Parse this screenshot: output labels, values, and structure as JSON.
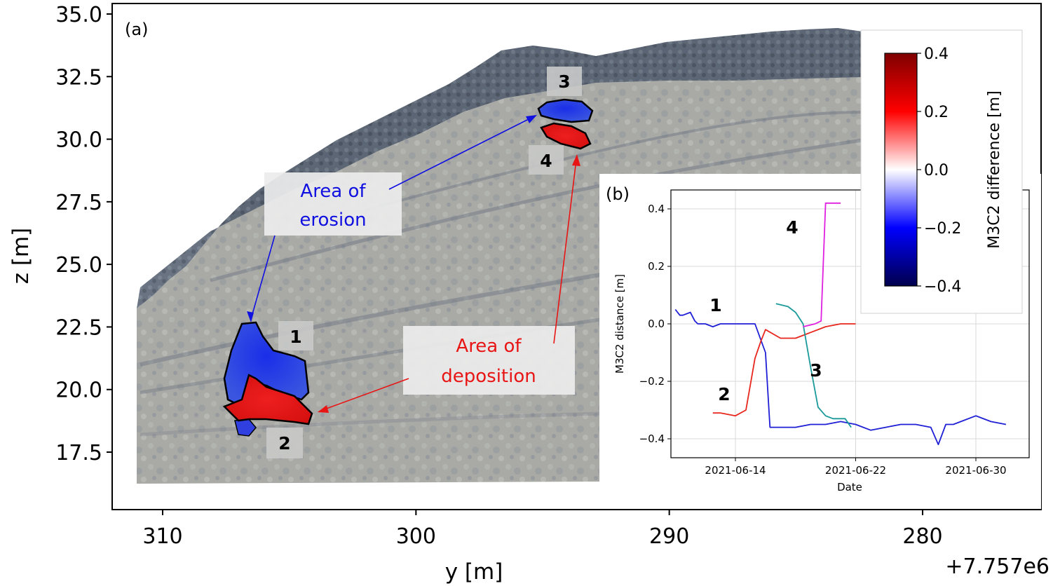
{
  "panel_a": {
    "label": "(a)",
    "x_axis_title": "y [m]",
    "y_axis_title": "z [m]",
    "offset_text": "+7.757e6",
    "annotations": {
      "erosion": [
        "Area of",
        "erosion"
      ],
      "deposition": [
        "Area of",
        "deposition"
      ]
    },
    "box_labels": [
      "1",
      "2",
      "3",
      "4"
    ],
    "colors": {
      "erosion": "#1010e0",
      "deposition": "#e81515",
      "rock": "#a6a7a1",
      "rock_dark": "#515d70"
    }
  },
  "colorbar": {
    "label": "M3C2 difference [m]",
    "ticks": [
      0.4,
      0.2,
      0.0,
      -0.2,
      -0.4
    ],
    "tick_labels": [
      "0.4",
      "0.2",
      "0.0",
      "−0.2",
      "−0.4"
    ],
    "colormap": "seismic",
    "range": [
      -0.4,
      0.4
    ]
  },
  "panel_b": {
    "label": "(b)",
    "x_axis_title": "Date",
    "y_axis_title": "M3C2 distance [m]",
    "series_labels": [
      "1",
      "2",
      "3",
      "4"
    ]
  },
  "chart_data": [
    {
      "type": "scatter",
      "panel": "a",
      "xlabel": "y [m]",
      "ylabel": "z [m]",
      "x_offset": "+7.757e6",
      "xlim": [
        312,
        274
      ],
      "ylim": [
        16,
        35.5
      ],
      "xticks": [
        310,
        300,
        290,
        280
      ],
      "xtick_labels": [
        "310",
        "300",
        "290",
        "280"
      ],
      "yticks": [
        17.5,
        20.0,
        22.5,
        25.0,
        27.5,
        30.0,
        32.5,
        35.0
      ],
      "ytick_labels": [
        "17.5",
        "20.0",
        "22.5",
        "25.0",
        "27.5",
        "30.0",
        "32.5",
        "35.0"
      ],
      "regions": [
        {
          "label": "1",
          "kind": "erosion",
          "center": [
            305.5,
            21.0
          ]
        },
        {
          "label": "2",
          "kind": "deposition",
          "center": [
            304.5,
            19.4
          ]
        },
        {
          "label": "3",
          "kind": "erosion",
          "center": [
            295.0,
            31.2
          ]
        },
        {
          "label": "4",
          "kind": "deposition",
          "center": [
            294.3,
            30.2
          ]
        }
      ]
    },
    {
      "type": "line",
      "panel": "b",
      "xlabel": "Date",
      "ylabel": "M3C2 distance [m]",
      "xlim": [
        "2021-06-09",
        "2021-07-03"
      ],
      "ylim": [
        -0.47,
        0.46
      ],
      "xticks": [
        "2021-06-14",
        "2021-06-22",
        "2021-06-30"
      ],
      "yticks": [
        -0.4,
        -0.2,
        0.0,
        0.2,
        0.4
      ],
      "ytick_labels": [
        "−0.4",
        "−0.2",
        "0.0",
        "0.2",
        "0.4"
      ],
      "grid": true,
      "series": [
        {
          "name": "1",
          "color": "#1f1fd6",
          "x": [
            "2021-06-10",
            "2021-06-10.3",
            "2021-06-10.5",
            "2021-06-11",
            "2021-06-11.3",
            "2021-06-11.5",
            "2021-06-12",
            "2021-06-12.5",
            "2021-06-13",
            "2021-06-14",
            "2021-06-14.5",
            "2021-06-15.3",
            "2021-06-16",
            "2021-06-16.3",
            "2021-06-16.7",
            "2021-06-17",
            "2021-06-18",
            "2021-06-19",
            "2021-06-20",
            "2021-06-21",
            "2021-06-22",
            "2021-06-23",
            "2021-06-24",
            "2021-06-25",
            "2021-06-26",
            "2021-06-27",
            "2021-06-27.5",
            "2021-06-28",
            "2021-06-28.5",
            "2021-06-29",
            "2021-06-30",
            "2021-07-01",
            "2021-07-02"
          ],
          "y": [
            0.05,
            0.03,
            0.03,
            0.04,
            0.01,
            0.0,
            0.0,
            -0.01,
            0.0,
            0.0,
            0.0,
            0.0,
            -0.1,
            -0.36,
            -0.36,
            -0.36,
            -0.36,
            -0.35,
            -0.35,
            -0.34,
            -0.35,
            -0.37,
            -0.36,
            -0.35,
            -0.35,
            -0.36,
            -0.42,
            -0.35,
            -0.35,
            -0.34,
            -0.32,
            -0.34,
            -0.35
          ]
        },
        {
          "name": "2",
          "color": "#e8261d",
          "x": [
            "2021-06-12.5",
            "2021-06-13",
            "2021-06-14",
            "2021-06-14.7",
            "2021-06-15.3",
            "2021-06-15.7",
            "2021-06-16",
            "2021-06-17",
            "2021-06-18",
            "2021-06-19",
            "2021-06-20",
            "2021-06-21",
            "2021-06-22"
          ],
          "y": [
            -0.31,
            -0.31,
            -0.32,
            -0.3,
            -0.12,
            -0.06,
            -0.02,
            -0.05,
            -0.05,
            -0.03,
            -0.01,
            0.0,
            0.0
          ]
        },
        {
          "name": "3",
          "color": "#1a9a9a",
          "x": [
            "2021-06-16.7",
            "2021-06-17.5",
            "2021-06-18",
            "2021-06-18.5",
            "2021-06-19",
            "2021-06-19.5",
            "2021-06-20",
            "2021-06-20.5",
            "2021-06-21.3",
            "2021-06-21.7"
          ],
          "y": [
            0.07,
            0.06,
            0.04,
            0.0,
            -0.15,
            -0.29,
            -0.32,
            -0.33,
            -0.33,
            -0.36
          ]
        },
        {
          "name": "4",
          "color": "#e020e0",
          "x": [
            "2021-06-18.5",
            "2021-06-19.3",
            "2021-06-19.7",
            "2021-06-20",
            "2021-06-20.5",
            "2021-06-21"
          ],
          "y": [
            -0.01,
            0.0,
            0.01,
            0.42,
            0.42,
            0.42
          ]
        }
      ]
    }
  ]
}
